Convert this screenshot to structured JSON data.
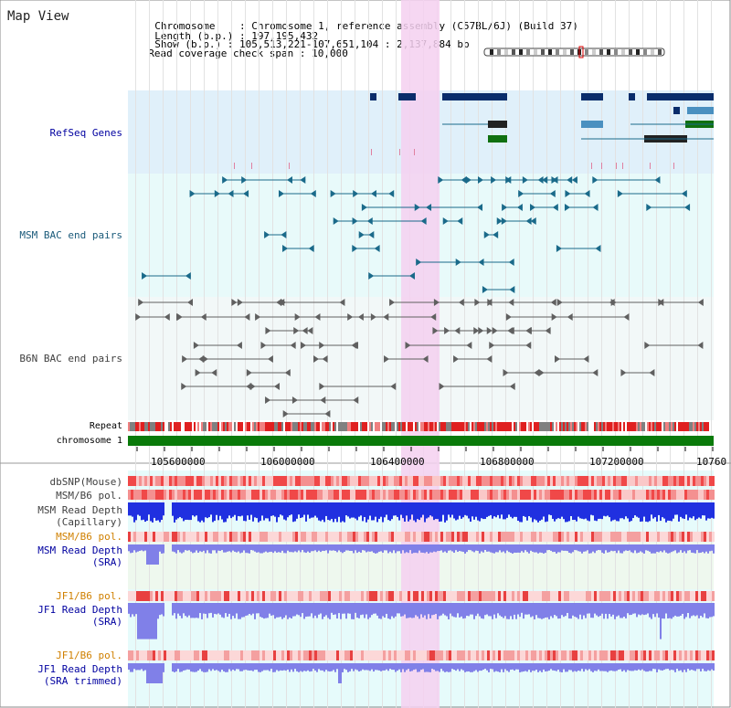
{
  "window_title": "Map View",
  "info": {
    "chromosome_label": "Chromosome",
    "chromosome_value": "Chromosome 1, reference assembly (C57BL/6J) (Build 37)",
    "length_label": "Length (b.p.)",
    "length_value": "197,195,432",
    "show_label": "Show (b.p.)",
    "show_value": "105,513,221-107,651,104 : 2,137,884 bp",
    "coverage_label": "Read coverage check span",
    "coverage_value": "10,000"
  },
  "tracks": {
    "refseq": "RefSeq Genes",
    "msm_bac": "MSM BAC end pairs",
    "b6n_bac": "B6N BAC end pairs",
    "repeat": "Repeat",
    "chromosome": "chromosome 1",
    "dbsnp": "dbSNP(Mouse)",
    "msm_b6_pol_1": "MSM/B6 pol.",
    "msm_read_depth_cap_1": "MSM Read Depth",
    "msm_read_depth_cap_2": "(Capillary)",
    "msm_b6_pol_2": "MSM/B6 pol.",
    "msm_read_depth_sra_1": "MSM Read Depth",
    "msm_read_depth_sra_2": "(SRA)",
    "jf1_b6_pol_1": "JF1/B6 pol.",
    "jf1_read_depth_sra_1": "JF1 Read Depth",
    "jf1_read_depth_sra_2": "(SRA)",
    "jf1_b6_pol_2": "JF1/B6 pol.",
    "jf1_read_depth_trim_1": "JF1 Read Depth",
    "jf1_read_depth_trim_2": "(SRA trimmed)"
  },
  "axis": {
    "ticks": [
      "105600000",
      "106000000",
      "106400000",
      "106800000",
      "107200000",
      "10760"
    ]
  },
  "colors": {
    "refseq_bg": "#e0f0fa",
    "bac_bg": "#e8fafa",
    "highlight": "#f5d0f0",
    "gene_dark": "#0a2d6b",
    "gene_mid": "#4a90c0",
    "gene_green": "#107010",
    "msm_bac": "#1a6a8a",
    "b6n_bac": "#606060",
    "chromosome": "#0a7a0a",
    "depth_cap": "#2030e0",
    "depth_sra": "#8080e8",
    "label_blue": "#0000a0",
    "label_orange": "#d08000",
    "label_teal": "#1a5a7a",
    "label_gray": "#404040"
  }
}
